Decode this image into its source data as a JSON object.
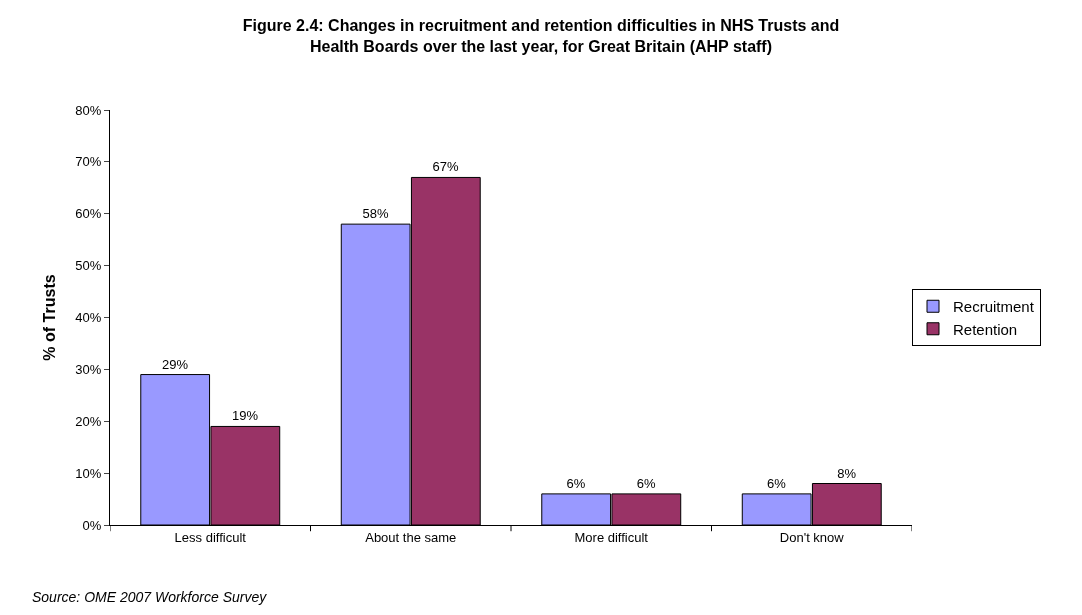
{
  "chart_data": {
    "type": "bar",
    "title": "Figure 2.4: Changes in recruitment and retention difficulties in NHS Trusts and Health Boards over the last year, for Great Britain (AHP staff)",
    "ylabel": "% of Trusts",
    "categories": [
      "Less difficult",
      "About the same",
      "More difficult",
      "Don't know"
    ],
    "series": [
      {
        "name": "Recruitment",
        "color": "#9999ff",
        "values": [
          29,
          58,
          6,
          6
        ],
        "value_labels": [
          "29%",
          "58%",
          "6%",
          "6%"
        ]
      },
      {
        "name": "Retention",
        "color": "#993366",
        "values": [
          19,
          67,
          6,
          8
        ],
        "value_labels": [
          "19%",
          "67%",
          "6%",
          "8%"
        ]
      }
    ],
    "ylim": [
      0,
      80
    ],
    "yticks": [
      {
        "value": 0,
        "label": "0%"
      },
      {
        "value": 10,
        "label": "10%"
      },
      {
        "value": 20,
        "label": "20%"
      },
      {
        "value": 30,
        "label": "30%"
      },
      {
        "value": 40,
        "label": "40%"
      },
      {
        "value": 50,
        "label": "50%"
      },
      {
        "value": 60,
        "label": "60%"
      },
      {
        "value": 70,
        "label": "70%"
      },
      {
        "value": 80,
        "label": "80%"
      }
    ],
    "legend": "right",
    "annotations": [
      "Source: OME 2007 Workforce Survey"
    ]
  }
}
